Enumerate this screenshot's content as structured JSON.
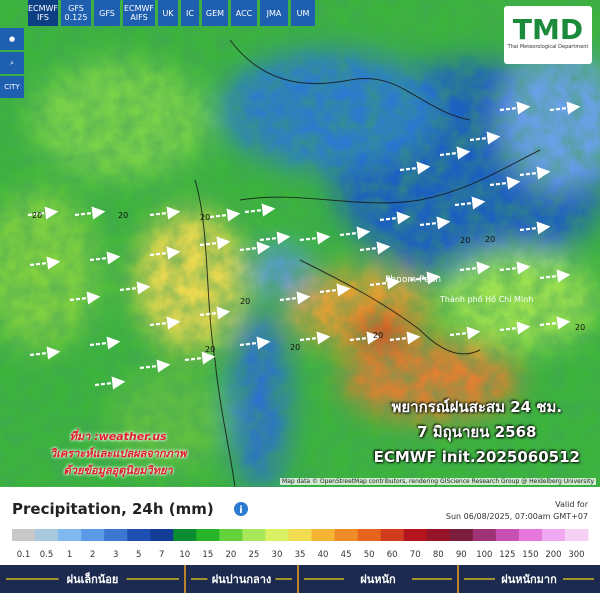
{
  "toolbar": {
    "models": [
      "ECMWF IFS",
      "GFS 0.125",
      "GFS",
      "ECMWF AIFS",
      "UK",
      "IC",
      "GEM",
      "ACC",
      "JMA",
      "UM"
    ],
    "city": "CITY"
  },
  "logo": {
    "text": "TMD",
    "subtitle": "Thai Meteorological Department"
  },
  "map": {
    "places": [
      "Phnom Penh",
      "Thành phố Hồ Chí Minh"
    ],
    "contour_labels": [
      "20",
      "20",
      "20",
      "20",
      "20",
      "20",
      "20",
      "20",
      "20",
      "20"
    ],
    "attribution": "Map data © OpenStreetMap contributors, rendering GIScience Research Group @ Heidelberg University"
  },
  "overlay": {
    "title_lines": [
      "พยากรณ์ฝนสะสม 24 ชม.",
      "7 มิถุนายน 2568",
      "ECMWF init.2025060512"
    ],
    "credit_lines": [
      "ที่มา :weather.us",
      "วิเคราะห์และแปลผลจากภาพ",
      "ด้วยข้อมูลอุตุนิยมวิทยา"
    ]
  },
  "legend": {
    "title": "Precipitation, 24h (mm)",
    "valid_label": "Valid for",
    "valid_time": "Sun 06/08/2025, 07:00am GMT+07",
    "scale": [
      0.1,
      0.5,
      1,
      2,
      3,
      5,
      7,
      10,
      15,
      20,
      25,
      30,
      35,
      40,
      45,
      50,
      60,
      70,
      80,
      90,
      100,
      125,
      150,
      200,
      300
    ],
    "colors": [
      "#c8c8c8",
      "#a8c8e0",
      "#80b8f0",
      "#5a9ae6",
      "#3c78d2",
      "#1e50b4",
      "#123c96",
      "#0a8c32",
      "#28b428",
      "#64d23c",
      "#a8e65a",
      "#dcf064",
      "#f2dc50",
      "#f5b432",
      "#f08c28",
      "#e6641e",
      "#d23c1e",
      "#b4141e",
      "#961428",
      "#7a1e3c",
      "#a03278",
      "#c850b4",
      "#e678dc",
      "#f0a8f0",
      "#f5d2f5"
    ]
  },
  "categories": {
    "labels": [
      "ฝนเล็กน้อย",
      "ฝนปานกลาง",
      "ฝนหนัก",
      "ฝนหนักมาก"
    ]
  }
}
